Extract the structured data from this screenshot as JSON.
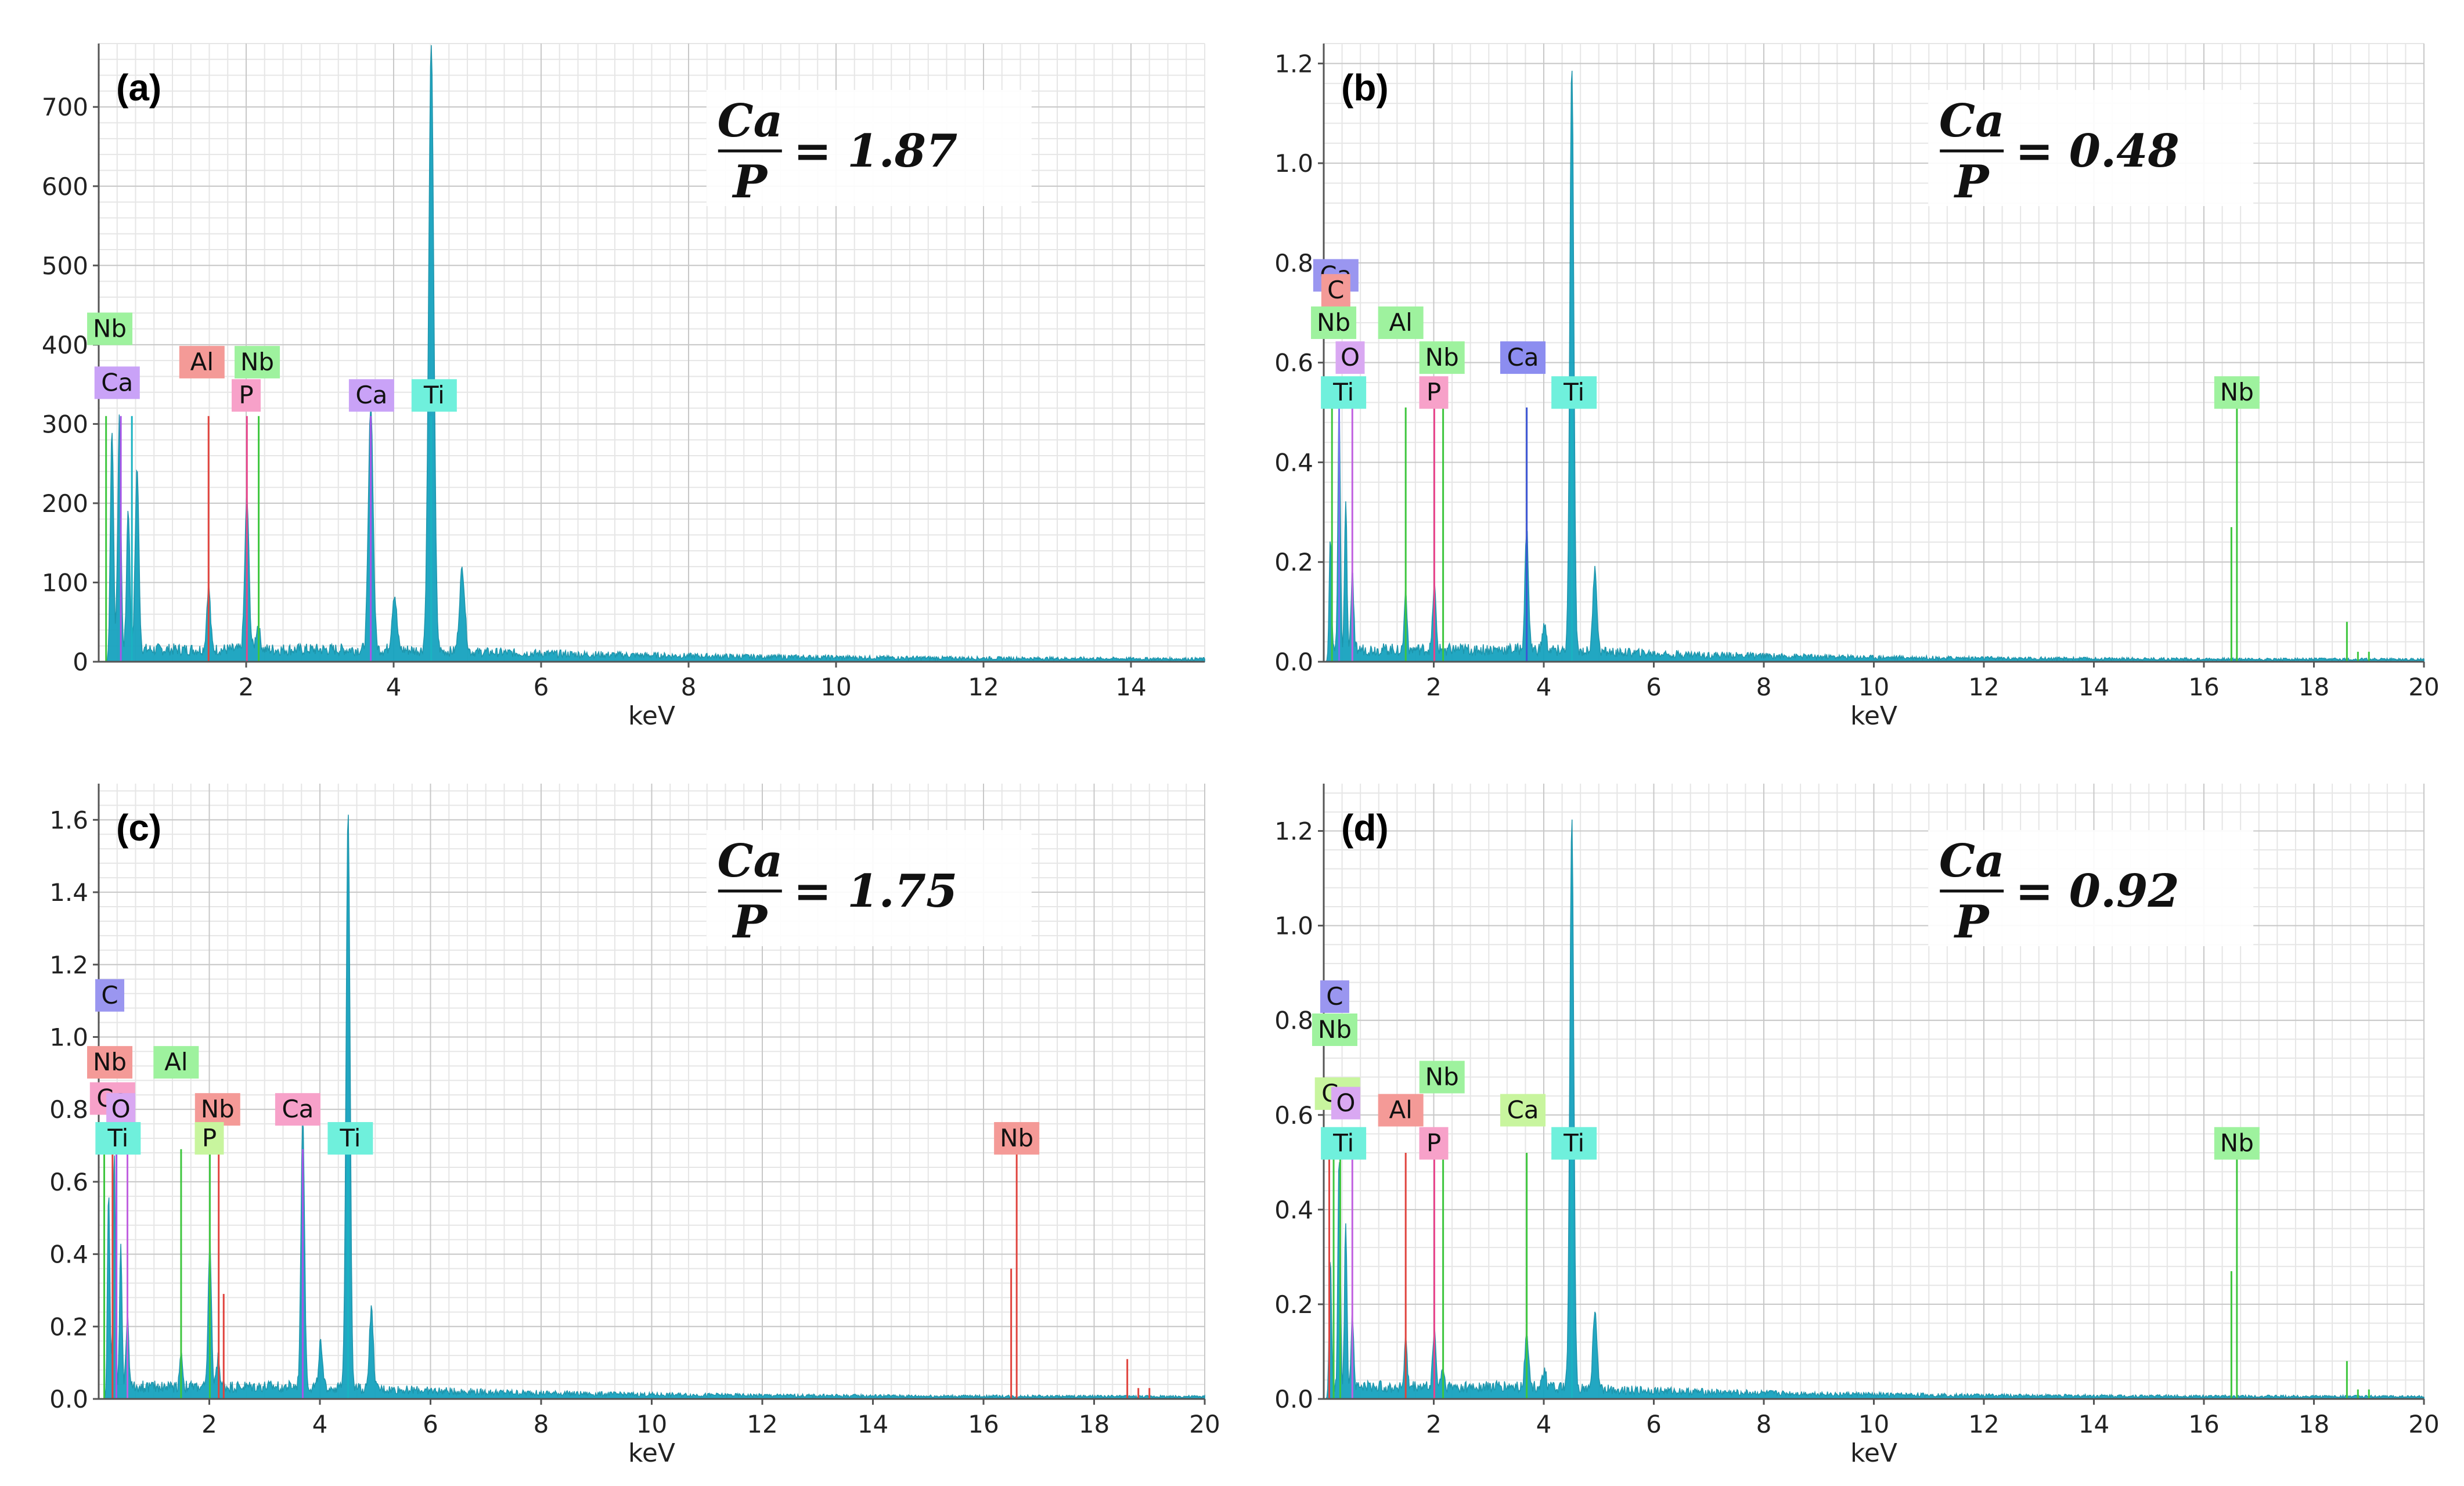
{
  "figure": {
    "description_none": ""
  },
  "colors": {
    "spectrum": "#17a3bf",
    "grid_major": "#c8c8c8",
    "grid_minor": "#e6e6e6",
    "axis": "#555555"
  },
  "chart_data": [
    {
      "id": "a",
      "type": "area",
      "panel_label": "(a)",
      "xlabel": "keV",
      "ylabel": "",
      "xlim": [
        0,
        15
      ],
      "ylim": [
        0,
        780
      ],
      "xticks": [
        2,
        4,
        6,
        8,
        10,
        12,
        14
      ],
      "yticks": [
        0,
        100,
        200,
        300,
        400,
        500,
        600,
        700
      ],
      "tick_decimals": 0,
      "ratio": {
        "numerator": "Ca",
        "denominator": "P",
        "value": "= 1.87"
      },
      "peaks": [
        {
          "x": 0.18,
          "y": 280,
          "w": 0.03
        },
        {
          "x": 0.28,
          "y": 290,
          "w": 0.03
        },
        {
          "x": 0.4,
          "y": 180,
          "w": 0.03
        },
        {
          "x": 0.52,
          "y": 230,
          "w": 0.035
        },
        {
          "x": 1.49,
          "y": 80,
          "w": 0.035
        },
        {
          "x": 2.01,
          "y": 190,
          "w": 0.04
        },
        {
          "x": 2.16,
          "y": 30,
          "w": 0.04
        },
        {
          "x": 3.69,
          "y": 310,
          "w": 0.045
        },
        {
          "x": 4.01,
          "y": 70,
          "w": 0.045
        },
        {
          "x": 4.51,
          "y": 760,
          "w": 0.05
        },
        {
          "x": 4.93,
          "y": 105,
          "w": 0.05
        }
      ],
      "lines": [
        {
          "element": "Nb",
          "x": 0.1,
          "y": 310,
          "color": "#3ec63e"
        },
        {
          "element": "Ca",
          "x": 0.3,
          "y": 310,
          "color": "#a855e8"
        },
        {
          "element": "Ti",
          "x": 0.45,
          "y": 310,
          "color": "#1ab3c2"
        },
        {
          "element": "Al",
          "x": 1.49,
          "y": 310,
          "color": "#e0443e"
        },
        {
          "element": "P",
          "x": 2.01,
          "y": 310,
          "color": "#e8458c"
        },
        {
          "element": "Nb",
          "x": 2.17,
          "y": 310,
          "color": "#3ec63e"
        },
        {
          "element": "Ca",
          "x": 3.69,
          "y": 310,
          "color": "#a855e8"
        },
        {
          "element": "Ti",
          "x": 4.51,
          "y": 310,
          "color": "#1ab3c2"
        }
      ],
      "labels": [
        {
          "text": "Nb",
          "x": 0.15,
          "y": 420,
          "bg": "#9ef29e"
        },
        {
          "text": "Ca",
          "x": 0.25,
          "y": 352,
          "bg": "#c9a2f7"
        },
        {
          "text": "Al",
          "x": 1.4,
          "y": 378,
          "bg": "#f49a97"
        },
        {
          "text": "Nb",
          "x": 2.15,
          "y": 378,
          "bg": "#9ef29e"
        },
        {
          "text": "P",
          "x": 2.0,
          "y": 336,
          "bg": "#f7a1c9"
        },
        {
          "text": "Ca",
          "x": 3.7,
          "y": 336,
          "bg": "#c9a2f7"
        },
        {
          "text": "Ti",
          "x": 4.55,
          "y": 336,
          "bg": "#6ff0dc"
        }
      ]
    },
    {
      "id": "b",
      "type": "area",
      "panel_label": "(b)",
      "xlabel": "keV",
      "ylabel": "",
      "xlim": [
        0,
        20
      ],
      "ylim": [
        0,
        1.24
      ],
      "xticks": [
        2,
        4,
        6,
        8,
        10,
        12,
        14,
        16,
        18,
        20
      ],
      "yticks": [
        0,
        0.2,
        0.4,
        0.6,
        0.8,
        1.0,
        1.2
      ],
      "tick_decimals": 1,
      "ratio": {
        "numerator": "Ca",
        "denominator": "P",
        "value": "= 0.48"
      },
      "peaks": [
        {
          "x": 0.12,
          "y": 0.25,
          "w": 0.03
        },
        {
          "x": 0.28,
          "y": 0.5,
          "w": 0.03
        },
        {
          "x": 0.4,
          "y": 0.3,
          "w": 0.03
        },
        {
          "x": 0.52,
          "y": 0.15,
          "w": 0.035
        },
        {
          "x": 1.49,
          "y": 0.12,
          "w": 0.035
        },
        {
          "x": 2.01,
          "y": 0.13,
          "w": 0.04
        },
        {
          "x": 3.69,
          "y": 0.24,
          "w": 0.045
        },
        {
          "x": 4.01,
          "y": 0.05,
          "w": 0.045
        },
        {
          "x": 4.51,
          "y": 1.18,
          "w": 0.05
        },
        {
          "x": 4.93,
          "y": 0.17,
          "w": 0.05
        }
      ],
      "lines": [
        {
          "element": "Nb",
          "x": 0.15,
          "y": 0.52,
          "color": "#3ec63e"
        },
        {
          "element": "Ca",
          "x": 0.28,
          "y": 0.52,
          "color": "#7a6ef0"
        },
        {
          "element": "O",
          "x": 0.52,
          "y": 0.52,
          "color": "#c060e0"
        },
        {
          "element": "Al",
          "x": 1.49,
          "y": 0.51,
          "color": "#3ec63e"
        },
        {
          "element": "P",
          "x": 2.01,
          "y": 0.51,
          "color": "#e8458c"
        },
        {
          "element": "Nb",
          "x": 2.17,
          "y": 0.51,
          "color": "#3ec63e"
        },
        {
          "element": "Ca",
          "x": 3.69,
          "y": 0.51,
          "color": "#3b55d4"
        },
        {
          "element": "Ti",
          "x": 4.51,
          "y": 0.51,
          "color": "#1ab3c2"
        },
        {
          "element": "Nb",
          "x": 16.6,
          "y": 0.51,
          "color": "#3ec63e"
        },
        {
          "element": "Nb",
          "x": 16.5,
          "y": 0.27,
          "color": "#3ec63e"
        },
        {
          "element": "Nb",
          "x": 18.6,
          "y": 0.08,
          "color": "#3ec63e"
        },
        {
          "element": "Nb",
          "x": 18.8,
          "y": 0.02,
          "color": "#3ec63e"
        },
        {
          "element": "Nb",
          "x": 19.0,
          "y": 0.02,
          "color": "#3ec63e"
        }
      ],
      "labels": [
        {
          "text": "Ca",
          "x": 0.22,
          "y": 0.775,
          "bg": "#9a96f0"
        },
        {
          "text": "C",
          "x": 0.22,
          "y": 0.745,
          "bg": "#f49a97"
        },
        {
          "text": "Nb",
          "x": 0.18,
          "y": 0.68,
          "bg": "#9ef29e"
        },
        {
          "text": "Al",
          "x": 1.4,
          "y": 0.68,
          "bg": "#9ef29e"
        },
        {
          "text": "O",
          "x": 0.48,
          "y": 0.61,
          "bg": "#d9a8f2"
        },
        {
          "text": "Nb",
          "x": 2.15,
          "y": 0.61,
          "bg": "#9ef29e"
        },
        {
          "text": "Ca",
          "x": 3.62,
          "y": 0.61,
          "bg": "#8c8df0"
        },
        {
          "text": "Ti",
          "x": 0.36,
          "y": 0.54,
          "bg": "#6ff0dc"
        },
        {
          "text": "P",
          "x": 2.0,
          "y": 0.54,
          "bg": "#f7a1c9"
        },
        {
          "text": "Ti",
          "x": 4.55,
          "y": 0.54,
          "bg": "#6ff0dc"
        },
        {
          "text": "Nb",
          "x": 16.6,
          "y": 0.54,
          "bg": "#9ef29e"
        }
      ]
    },
    {
      "id": "c",
      "type": "area",
      "panel_label": "(c)",
      "xlabel": "keV",
      "ylabel": "",
      "xlim": [
        0,
        20
      ],
      "ylim": [
        0,
        1.7
      ],
      "xticks": [
        2,
        4,
        6,
        8,
        10,
        12,
        14,
        16,
        18,
        20
      ],
      "yticks": [
        0,
        0.2,
        0.4,
        0.6,
        0.8,
        1.0,
        1.2,
        1.4,
        1.6
      ],
      "tick_decimals": 1,
      "ratio": {
        "numerator": "Ca",
        "denominator": "P",
        "value": "= 1.75"
      },
      "peaks": [
        {
          "x": 0.18,
          "y": 0.55,
          "w": 0.03
        },
        {
          "x": 0.28,
          "y": 0.65,
          "w": 0.03
        },
        {
          "x": 0.4,
          "y": 0.4,
          "w": 0.03
        },
        {
          "x": 0.52,
          "y": 0.2,
          "w": 0.035
        },
        {
          "x": 1.49,
          "y": 0.1,
          "w": 0.035
        },
        {
          "x": 2.01,
          "y": 0.4,
          "w": 0.04
        },
        {
          "x": 2.16,
          "y": 0.08,
          "w": 0.04
        },
        {
          "x": 3.69,
          "y": 0.75,
          "w": 0.045
        },
        {
          "x": 4.01,
          "y": 0.12,
          "w": 0.045
        },
        {
          "x": 4.51,
          "y": 1.61,
          "w": 0.05
        },
        {
          "x": 4.93,
          "y": 0.22,
          "w": 0.05
        }
      ],
      "lines": [
        {
          "element": "C",
          "x": 0.1,
          "y": 0.7,
          "color": "#3ec63e"
        },
        {
          "element": "Nb",
          "x": 0.25,
          "y": 0.7,
          "color": "#e0443e"
        },
        {
          "element": "Ca",
          "x": 0.32,
          "y": 0.7,
          "color": "#a855e8"
        },
        {
          "element": "O",
          "x": 0.52,
          "y": 0.7,
          "color": "#c060e0"
        },
        {
          "element": "Al",
          "x": 1.49,
          "y": 0.69,
          "color": "#3ec63e"
        },
        {
          "element": "P",
          "x": 2.01,
          "y": 0.69,
          "color": "#3ec63e"
        },
        {
          "element": "Nb",
          "x": 2.17,
          "y": 0.69,
          "color": "#e0443e"
        },
        {
          "element": "Nb",
          "x": 2.26,
          "y": 0.29,
          "color": "#e0443e"
        },
        {
          "element": "Ca",
          "x": 3.69,
          "y": 0.69,
          "color": "#a855e8"
        },
        {
          "element": "Ti",
          "x": 4.51,
          "y": 0.69,
          "color": "#1ab3c2"
        },
        {
          "element": "Nb",
          "x": 16.6,
          "y": 0.7,
          "color": "#e0443e"
        },
        {
          "element": "Nb",
          "x": 16.5,
          "y": 0.36,
          "color": "#e0443e"
        },
        {
          "element": "Nb",
          "x": 18.6,
          "y": 0.11,
          "color": "#e0443e"
        },
        {
          "element": "Nb",
          "x": 18.8,
          "y": 0.03,
          "color": "#e0443e"
        },
        {
          "element": "Nb",
          "x": 19.0,
          "y": 0.03,
          "color": "#e0443e"
        }
      ],
      "labels": [
        {
          "text": "C",
          "x": 0.2,
          "y": 1.115,
          "bg": "#9a96f0"
        },
        {
          "text": "Nb",
          "x": 0.2,
          "y": 0.93,
          "bg": "#f49a97"
        },
        {
          "text": "Al",
          "x": 1.4,
          "y": 0.93,
          "bg": "#9ef29e"
        },
        {
          "text": "Ca",
          "x": 0.25,
          "y": 0.83,
          "bg": "#f7a1c9"
        },
        {
          "text": "O",
          "x": 0.4,
          "y": 0.8,
          "bg": "#d9a8f2"
        },
        {
          "text": "Nb",
          "x": 2.15,
          "y": 0.8,
          "bg": "#f49a97"
        },
        {
          "text": "Ca",
          "x": 3.6,
          "y": 0.8,
          "bg": "#f7a1c9"
        },
        {
          "text": "Ti",
          "x": 0.35,
          "y": 0.72,
          "bg": "#6ff0dc"
        },
        {
          "text": "P",
          "x": 2.0,
          "y": 0.72,
          "bg": "#c8f59e"
        },
        {
          "text": "Ti",
          "x": 4.55,
          "y": 0.72,
          "bg": "#6ff0dc"
        },
        {
          "text": "Nb",
          "x": 16.6,
          "y": 0.72,
          "bg": "#f49a97"
        }
      ]
    },
    {
      "id": "d",
      "type": "area",
      "panel_label": "(d)",
      "xlabel": "keV",
      "ylabel": "",
      "xlim": [
        0,
        20
      ],
      "ylim": [
        0,
        1.3
      ],
      "xticks": [
        2,
        4,
        6,
        8,
        10,
        12,
        14,
        16,
        18,
        20
      ],
      "yticks": [
        0,
        0.2,
        0.4,
        0.6,
        0.8,
        1.0,
        1.2
      ],
      "tick_decimals": 1,
      "ratio": {
        "numerator": "Ca",
        "denominator": "P",
        "value": "= 0.92"
      },
      "peaks": [
        {
          "x": 0.12,
          "y": 0.3,
          "w": 0.03
        },
        {
          "x": 0.28,
          "y": 0.5,
          "w": 0.03
        },
        {
          "x": 0.4,
          "y": 0.35,
          "w": 0.03
        },
        {
          "x": 0.52,
          "y": 0.15,
          "w": 0.035
        },
        {
          "x": 1.49,
          "y": 0.1,
          "w": 0.035
        },
        {
          "x": 2.01,
          "y": 0.12,
          "w": 0.04
        },
        {
          "x": 2.16,
          "y": 0.04,
          "w": 0.04
        },
        {
          "x": 3.69,
          "y": 0.12,
          "w": 0.045
        },
        {
          "x": 4.01,
          "y": 0.04,
          "w": 0.045
        },
        {
          "x": 4.51,
          "y": 1.2,
          "w": 0.05
        },
        {
          "x": 4.93,
          "y": 0.17,
          "w": 0.05
        }
      ],
      "lines": [
        {
          "element": "C",
          "x": 0.1,
          "y": 0.52,
          "color": "#e0443e"
        },
        {
          "element": "Nb",
          "x": 0.18,
          "y": 0.52,
          "color": "#3ec63e"
        },
        {
          "element": "Ca",
          "x": 0.3,
          "y": 0.52,
          "color": "#3ec63e"
        },
        {
          "element": "O",
          "x": 0.52,
          "y": 0.52,
          "color": "#c060e0"
        },
        {
          "element": "Al",
          "x": 1.49,
          "y": 0.52,
          "color": "#e0443e"
        },
        {
          "element": "P",
          "x": 2.01,
          "y": 0.52,
          "color": "#e8458c"
        },
        {
          "element": "Nb",
          "x": 2.17,
          "y": 0.52,
          "color": "#3ec63e"
        },
        {
          "element": "Ca",
          "x": 3.69,
          "y": 0.52,
          "color": "#3ec63e"
        },
        {
          "element": "Ti",
          "x": 4.51,
          "y": 0.52,
          "color": "#1ab3c2"
        },
        {
          "element": "Nb",
          "x": 16.6,
          "y": 0.52,
          "color": "#3ec63e"
        },
        {
          "element": "Nb",
          "x": 16.5,
          "y": 0.27,
          "color": "#3ec63e"
        },
        {
          "element": "Nb",
          "x": 18.6,
          "y": 0.08,
          "color": "#3ec63e"
        },
        {
          "element": "Nb",
          "x": 18.8,
          "y": 0.02,
          "color": "#3ec63e"
        },
        {
          "element": "Nb",
          "x": 19.0,
          "y": 0.02,
          "color": "#3ec63e"
        }
      ],
      "labels": [
        {
          "text": "C",
          "x": 0.2,
          "y": 0.85,
          "bg": "#9a96f0"
        },
        {
          "text": "Nb",
          "x": 0.2,
          "y": 0.78,
          "bg": "#9ef29e"
        },
        {
          "text": "Nb",
          "x": 2.15,
          "y": 0.68,
          "bg": "#9ef29e"
        },
        {
          "text": "Ca",
          "x": 0.25,
          "y": 0.645,
          "bg": "#c8f59e"
        },
        {
          "text": "O",
          "x": 0.4,
          "y": 0.625,
          "bg": "#d9a8f2"
        },
        {
          "text": "Al",
          "x": 1.4,
          "y": 0.61,
          "bg": "#f49a97"
        },
        {
          "text": "Ca",
          "x": 3.62,
          "y": 0.61,
          "bg": "#c8f59e"
        },
        {
          "text": "Ti",
          "x": 0.36,
          "y": 0.54,
          "bg": "#6ff0dc"
        },
        {
          "text": "P",
          "x": 2.0,
          "y": 0.54,
          "bg": "#f7a1c9"
        },
        {
          "text": "Ti",
          "x": 4.55,
          "y": 0.54,
          "bg": "#6ff0dc"
        },
        {
          "text": "Nb",
          "x": 16.6,
          "y": 0.54,
          "bg": "#9ef29e"
        }
      ]
    }
  ]
}
